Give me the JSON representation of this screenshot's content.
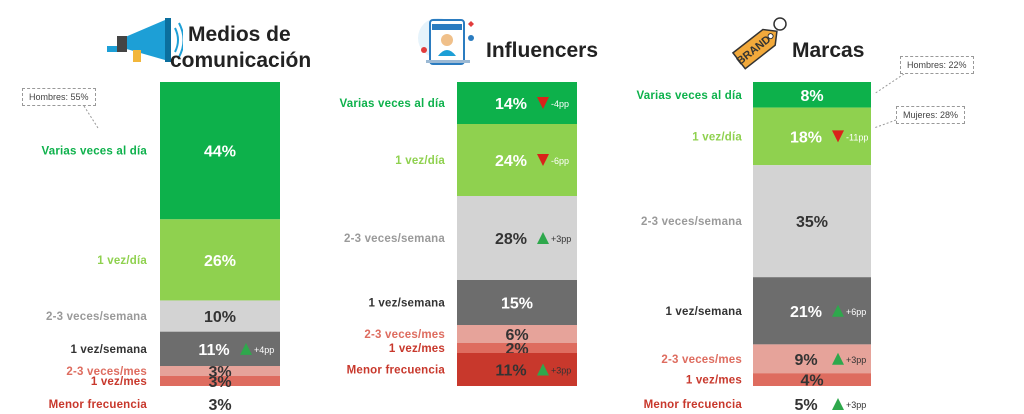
{
  "panels": [
    {
      "title_line1": "Medios de",
      "title_line2": "comunicación",
      "icon": "megaphone-icon",
      "callouts": [
        "Hombres: 55%"
      ]
    },
    {
      "title_line1": "Influencers",
      "title_line2": "",
      "icon": "influencer-phone-icon",
      "callouts": []
    },
    {
      "title_line1": "Marcas",
      "title_line2": "",
      "icon": "brand-tag-icon",
      "icon_text": "BRAND",
      "callouts": [
        "Hombres: 22%",
        "Mujeres: 28%"
      ]
    }
  ],
  "colors": {
    "dark_green": "#0db14b",
    "light_green": "#8fd14f",
    "light_gray": "#d3d3d3",
    "dark_gray": "#6d6d6d",
    "pink": "#e6a39a",
    "light_red": "#de6c5f",
    "red": "#c8382c",
    "up_triangle": "#2ea84c",
    "down_triangle": "#d9231a"
  },
  "chart_data": [
    {
      "type": "bar",
      "stacked": true,
      "title": "Medios de comunicación",
      "categories": [
        "Varias veces al día",
        "1 vez/día",
        "2-3 veces/semana",
        "1 vez/semana",
        "2-3 veces/mes",
        "1 vez/mes",
        "Menor frecuencia"
      ],
      "values": [
        44,
        26,
        10,
        11,
        3,
        3,
        3
      ],
      "labels": [
        "44%",
        "26%",
        "10%",
        "11%",
        "3%",
        "3%",
        "3%"
      ],
      "changes": [
        null,
        null,
        null,
        "+4pp",
        null,
        null,
        null
      ]
    },
    {
      "type": "bar",
      "stacked": true,
      "title": "Influencers",
      "categories": [
        "Varias veces al día",
        "1 vez/día",
        "2-3 veces/semana",
        "1 vez/semana",
        "2-3 veces/mes",
        "1 vez/mes",
        "Menor frecuencia"
      ],
      "values": [
        14,
        24,
        28,
        15,
        6,
        2,
        11
      ],
      "labels": [
        "14%",
        "24%",
        "28%",
        "15%",
        "6%",
        "2%",
        "11%"
      ],
      "changes": [
        "-4pp",
        "-6pp",
        "+3pp",
        null,
        null,
        null,
        "+3pp"
      ]
    },
    {
      "type": "bar",
      "stacked": true,
      "title": "Marcas",
      "categories": [
        "Varias veces al día",
        "1 vez/día",
        "2-3 veces/semana",
        "1 vez/semana",
        "2-3 veces/mes",
        "1 vez/mes",
        "Menor frecuencia"
      ],
      "values": [
        8,
        18,
        35,
        21,
        9,
        4,
        5
      ],
      "labels": [
        "8%",
        "18%",
        "35%",
        "21%",
        "9%",
        "4%",
        "5%"
      ],
      "changes": [
        null,
        "-11pp",
        null,
        "+6pp",
        "+3pp",
        null,
        "+3pp"
      ]
    }
  ]
}
